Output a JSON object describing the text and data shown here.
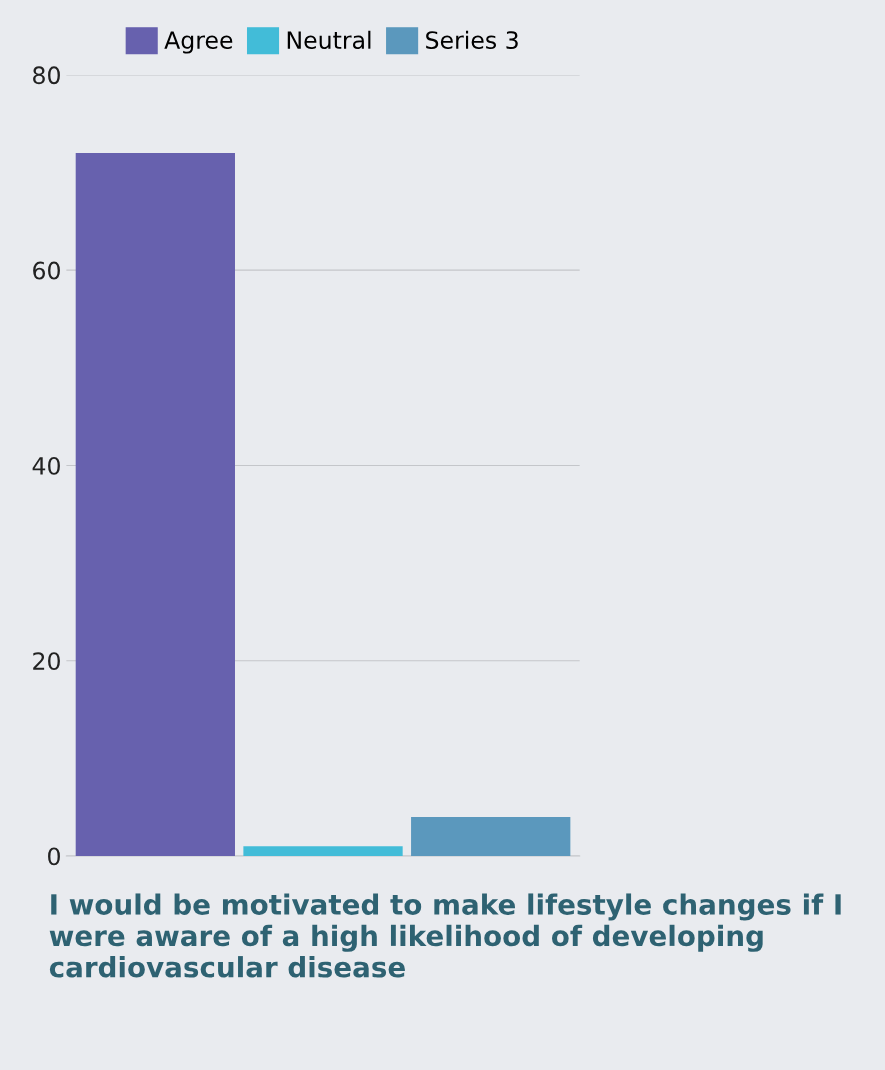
{
  "chart_data": {
    "type": "bar",
    "title": "I would be motivated to make lifestyle changes if I were aware of a high likelihood of developing cardiovascular disease",
    "categories": [
      null
    ],
    "series": [
      {
        "name": "Agree",
        "color": "#6761ae",
        "values": [
          72
        ]
      },
      {
        "name": "Neutral",
        "color": "#42bcd8",
        "values": [
          1
        ]
      },
      {
        "name": "Series 3",
        "color": "#5b98bd",
        "values": [
          4
        ]
      }
    ],
    "ylim": [
      0,
      80
    ],
    "yticks": [
      0,
      20,
      40,
      60,
      80
    ],
    "grid": "y",
    "legend": "top",
    "tick_labels": "y"
  }
}
